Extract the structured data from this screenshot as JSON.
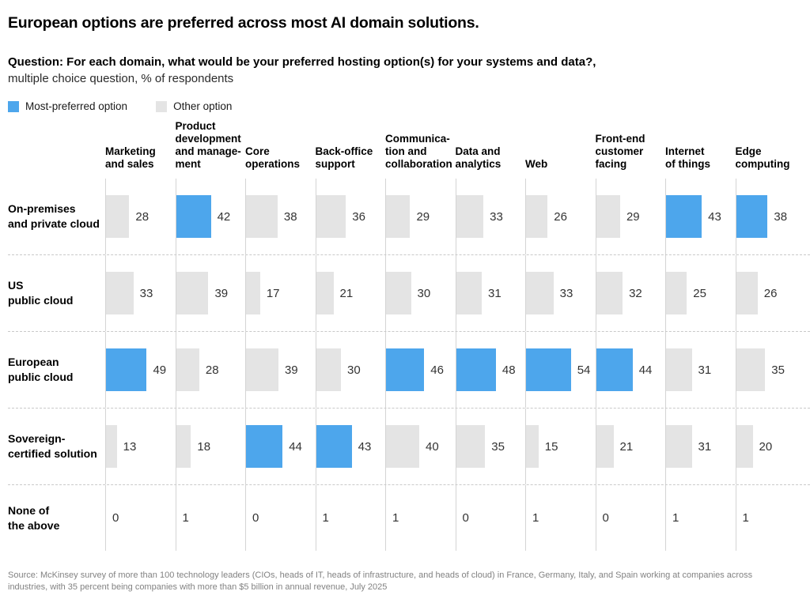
{
  "title": "European options are preferred across most AI domain solutions.",
  "question": {
    "bold": "Question: For each domain, what would be your preferred hosting option(s) for your systems and data?,",
    "sub": "multiple choice question, % of respondents"
  },
  "legend": {
    "preferred_label": "Most-preferred option",
    "other_label": "Other option"
  },
  "colors": {
    "preferred": "#4DA6EC",
    "other": "#E4E4E4"
  },
  "source": "Source: McKinsey survey of more than 100 technology leaders (CIOs, heads of IT, heads of infrastructure, and heads of cloud) in France, Germany, Italy, and Spain working at companies across industries, with 35 percent being companies with more than $5 billion in annual revenue, July 2025",
  "chart_data": {
    "type": "bar",
    "title": "European options are preferred across most AI domain solutions.",
    "unit": "% of respondents",
    "legend_entries": [
      "Most-preferred option",
      "Other option"
    ],
    "columns": [
      "Marketing\nand sales",
      "Product\ndevelopment\nand manage-\nment",
      "Core\noperations",
      "Back-office\nsupport",
      "Communica-\ntion and\ncollaboration",
      "Data and\nanalytics",
      "Web",
      "Front-end\ncustomer\nfacing",
      "Internet\nof things",
      "Edge\ncomputing"
    ],
    "rows": [
      {
        "label": "On-premises\nand private cloud",
        "values": [
          28,
          42,
          38,
          36,
          29,
          33,
          26,
          29,
          43,
          38
        ],
        "preferred": [
          false,
          true,
          false,
          false,
          false,
          false,
          false,
          false,
          true,
          true
        ],
        "show_bars": true
      },
      {
        "label": "US\npublic cloud",
        "values": [
          33,
          39,
          17,
          21,
          30,
          31,
          33,
          32,
          25,
          26
        ],
        "preferred": [
          false,
          false,
          false,
          false,
          false,
          false,
          false,
          false,
          false,
          false
        ],
        "show_bars": true
      },
      {
        "label": "European\npublic cloud",
        "values": [
          49,
          28,
          39,
          30,
          46,
          48,
          54,
          44,
          31,
          35
        ],
        "preferred": [
          true,
          false,
          false,
          false,
          true,
          true,
          true,
          true,
          false,
          false
        ],
        "show_bars": true
      },
      {
        "label": "Sovereign-\ncertified solution",
        "values": [
          13,
          18,
          44,
          43,
          40,
          35,
          15,
          21,
          31,
          20
        ],
        "preferred": [
          false,
          false,
          true,
          true,
          false,
          false,
          false,
          false,
          false,
          false
        ],
        "show_bars": true
      },
      {
        "label": "None of\nthe above",
        "values": [
          0,
          1,
          0,
          1,
          1,
          0,
          1,
          0,
          1,
          1
        ],
        "preferred": [
          false,
          false,
          false,
          false,
          false,
          false,
          false,
          false,
          false,
          false
        ],
        "show_bars": false
      }
    ]
  }
}
